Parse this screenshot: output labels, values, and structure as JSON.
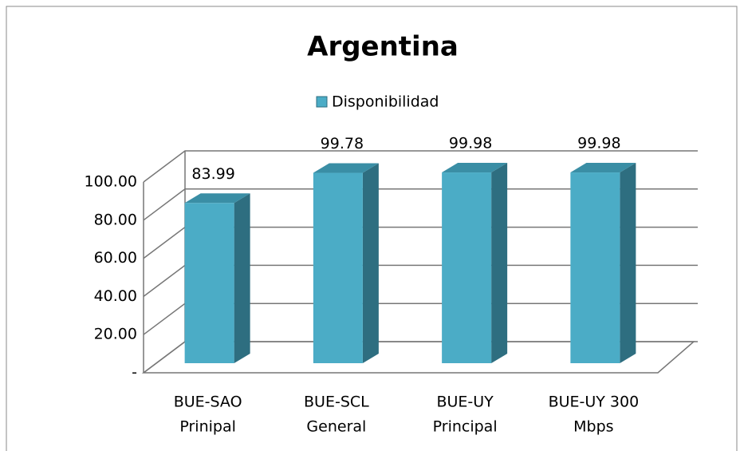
{
  "chart_data": {
    "type": "bar3d",
    "title": "Argentina",
    "categories": [
      [
        "BUE-SAO",
        "Prinipal"
      ],
      [
        "BUE-SCL",
        "General"
      ],
      [
        "BUE-UY",
        "Principal"
      ],
      [
        "BUE-UY 300",
        "Mbps"
      ]
    ],
    "series": [
      {
        "name": "Disponibilidad",
        "color": "#4bacc6",
        "values": [
          83.99,
          99.78,
          99.98,
          99.98
        ]
      }
    ],
    "ylim": [
      0,
      100
    ],
    "yticks": [
      {
        "value": 0,
        "label": "-"
      },
      {
        "value": 20,
        "label": "20.00"
      },
      {
        "value": 40,
        "label": "40.00"
      },
      {
        "value": 60,
        "label": "60.00"
      },
      {
        "value": 80,
        "label": "80.00"
      },
      {
        "value": 100,
        "label": "100.00"
      }
    ],
    "grid": true,
    "legend": "top"
  }
}
